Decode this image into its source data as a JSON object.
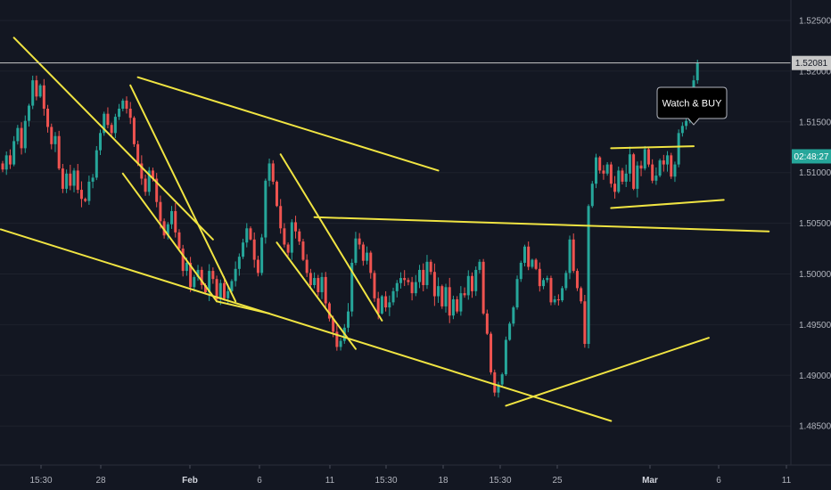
{
  "chart_data": {
    "type": "candlestick",
    "yticks": [
      "1.52500",
      "1.52000",
      "1.51500",
      "1.51000",
      "1.50500",
      "1.50000",
      "1.49500",
      "1.49000",
      "1.48500"
    ],
    "ytick_values": [
      1.525,
      1.52,
      1.515,
      1.51,
      1.505,
      1.5,
      1.495,
      1.49,
      1.485
    ],
    "ylim": [
      1.4808,
      1.5274
    ],
    "xticks": [
      {
        "label": "15:30",
        "bold": false
      },
      {
        "label": "28",
        "bold": false
      },
      {
        "label": "Feb",
        "bold": true
      },
      {
        "label": "6",
        "bold": false
      },
      {
        "label": "11",
        "bold": false
      },
      {
        "label": "15:30",
        "bold": false
      },
      {
        "label": "18",
        "bold": false
      },
      {
        "label": "15:30",
        "bold": false
      },
      {
        "label": "25",
        "bold": false
      },
      {
        "label": "Mar",
        "bold": true
      },
      {
        "label": "6",
        "bold": false
      },
      {
        "label": "11",
        "bold": false
      }
    ],
    "price_line": {
      "label": "1.52081",
      "value": 1.52081
    },
    "current_price_tag": {
      "label": "02:48:27",
      "value": 1.5116
    },
    "annotation": "Watch & BUY",
    "colors": {
      "up": "#26a69a",
      "down": "#ef5350",
      "breakout": "#00e600",
      "trendline": "#f0e442",
      "price_tag": "#26a69a",
      "background": "#131722"
    },
    "closes": [
      1.5103,
      1.5117,
      1.5108,
      1.5131,
      1.5144,
      1.5124,
      1.5151,
      1.5166,
      1.5191,
      1.5175,
      1.5186,
      1.5163,
      1.5145,
      1.5128,
      1.5136,
      1.5104,
      1.5084,
      1.5099,
      1.5087,
      1.5102,
      1.5083,
      1.5074,
      1.5072,
      1.5091,
      1.5095,
      1.5122,
      1.5139,
      1.5158,
      1.5147,
      1.5139,
      1.5155,
      1.5163,
      1.5171,
      1.5163,
      1.5154,
      1.5128,
      1.5109,
      1.5094,
      1.5081,
      1.5102,
      1.5094,
      1.5071,
      1.5052,
      1.5038,
      1.5049,
      1.5062,
      1.5041,
      1.5025,
      1.5003,
      1.5011,
      1.4987,
      1.4997,
      1.5004,
      1.4989,
      1.4982,
      1.5003,
      1.4995,
      1.4975,
      1.4991,
      1.4976,
      1.4983,
      1.4993,
      1.5005,
      1.5017,
      1.5031,
      1.5045,
      1.5034,
      1.5014,
      1.5001,
      1.5036,
      1.5092,
      1.5109,
      1.5091,
      1.5067,
      1.5045,
      1.5029,
      1.5021,
      1.5051,
      1.5042,
      1.5032,
      1.5014,
      1.5001,
      1.4989,
      1.4996,
      1.4982,
      1.4997,
      1.4971,
      1.4956,
      1.4943,
      1.4928,
      1.4934,
      1.4947,
      1.4963,
      1.5011,
      1.5035,
      1.5029,
      1.5013,
      1.5021,
      1.5001,
      1.4976,
      1.4961,
      1.4978,
      1.4967,
      1.4972,
      1.4983,
      1.4991,
      1.4996,
      1.4994,
      1.4992,
      1.4981,
      1.4992,
      1.5004,
      1.4989,
      1.5012,
      1.5002,
      1.4978,
      1.4988,
      1.4968,
      1.4987,
      1.4959,
      1.4975,
      1.4963,
      1.4981,
      1.4979,
      1.4998,
      1.4983,
      1.5004,
      1.5012,
      1.4961,
      1.4941,
      1.4903,
      1.4883,
      1.4891,
      1.4901,
      1.4935,
      1.4951,
      1.4967,
      1.4995,
      1.5011,
      1.5027,
      1.5007,
      1.5014,
      1.5005,
      1.4988,
      1.4994,
      1.4996,
      1.4972,
      1.4975,
      1.4974,
      1.4986,
      1.5001,
      1.5034,
      1.5003,
      1.4986,
      1.4973,
      1.4931,
      1.5067,
      1.5089,
      1.5115,
      1.5102,
      1.5099,
      1.5108,
      1.5089,
      1.5081,
      1.5102,
      1.5091,
      1.5099,
      1.5118,
      1.5084,
      1.5107,
      1.5104,
      1.5123,
      1.5108,
      1.5092,
      1.5097,
      1.5112,
      1.5108,
      1.5117,
      1.5096,
      1.5108,
      1.5139,
      1.5146,
      1.5151,
      1.5172,
      1.5191,
      1.5208
    ],
    "trendlines": [
      {
        "name": "upper-channel",
        "from": {
          "bar": 3,
          "price": 1.5233
        },
        "to": {
          "bar": 56,
          "price": 1.5034
        }
      },
      {
        "name": "lower-channel",
        "from": {
          "bar": -0.5,
          "price": 1.5044
        },
        "to": {
          "bar": 162,
          "price": 1.4855
        }
      },
      {
        "name": "descending-line-2",
        "from": {
          "bar": 36,
          "price": 1.5194
        },
        "to": {
          "bar": 116,
          "price": 1.5102
        }
      },
      {
        "name": "resistance-neckline",
        "from": {
          "bar": 83,
          "price": 1.5056
        },
        "to": {
          "bar": 204,
          "price": 1.5042
        }
      },
      {
        "name": "flag-1-upper",
        "from": {
          "bar": 34,
          "price": 1.5186
        },
        "to": {
          "bar": 62,
          "price": 1.4973
        }
      },
      {
        "name": "flag-1-lower",
        "from": {
          "bar": 32,
          "price": 1.5099
        },
        "to": {
          "bar": 57,
          "price": 1.4973
        }
      },
      {
        "name": "flag-1-base",
        "from": {
          "bar": 57,
          "price": 1.4973
        },
        "to": {
          "bar": 71,
          "price": 1.4961
        }
      },
      {
        "name": "flag-2-upper",
        "from": {
          "bar": 74,
          "price": 1.5118
        },
        "to": {
          "bar": 101,
          "price": 1.4954
        }
      },
      {
        "name": "flag-2-lower",
        "from": {
          "bar": 73,
          "price": 1.5031
        },
        "to": {
          "bar": 94,
          "price": 1.4926
        }
      },
      {
        "name": "rising-support",
        "from": {
          "bar": 134,
          "price": 1.487
        },
        "to": {
          "bar": 188,
          "price": 1.4937
        }
      },
      {
        "name": "box-top",
        "from": {
          "bar": 162,
          "price": 1.5124
        },
        "to": {
          "bar": 184,
          "price": 1.5126
        }
      },
      {
        "name": "box-bottom",
        "from": {
          "bar": 162,
          "price": 1.5065
        },
        "to": {
          "bar": 192,
          "price": 1.5073
        }
      }
    ]
  }
}
